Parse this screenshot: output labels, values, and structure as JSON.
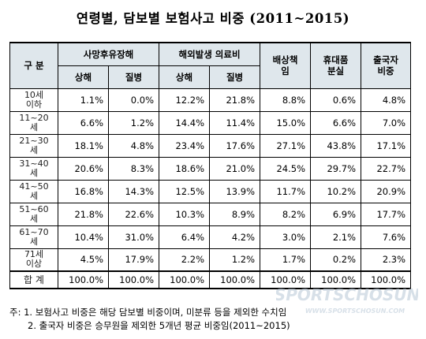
{
  "title": "연령별, 담보별 보험사고 비중 (2011~2015)",
  "table": {
    "header": {
      "gubun": "구 분",
      "group1": "사망후유장해",
      "group2": "해외발생 의료비",
      "col_liability": "배상책임",
      "col_portable": "휴대품분실",
      "col_departure": "출국자비중",
      "sub_injury": "상해",
      "sub_disease": "질병"
    },
    "rows": [
      {
        "label": "10세이하",
        "values": [
          "1.1%",
          "0.0%",
          "12.2%",
          "21.8%",
          "8.8%",
          "0.6%",
          "4.8%"
        ]
      },
      {
        "label": "11~20세",
        "values": [
          "6.6%",
          "1.2%",
          "14.4%",
          "11.4%",
          "15.0%",
          "6.6%",
          "7.0%"
        ]
      },
      {
        "label": "21~30세",
        "values": [
          "18.1%",
          "4.8%",
          "23.4%",
          "17.6%",
          "27.1%",
          "43.8%",
          "17.1%"
        ]
      },
      {
        "label": "31~40세",
        "values": [
          "20.6%",
          "8.3%",
          "18.6%",
          "21.0%",
          "24.5%",
          "29.7%",
          "22.7%"
        ]
      },
      {
        "label": "41~50세",
        "values": [
          "16.8%",
          "14.3%",
          "12.5%",
          "13.9%",
          "11.7%",
          "10.2%",
          "20.9%"
        ]
      },
      {
        "label": "51~60세",
        "values": [
          "21.8%",
          "22.6%",
          "10.3%",
          "8.9%",
          "8.2%",
          "6.9%",
          "17.7%"
        ]
      },
      {
        "label": "61~70세",
        "values": [
          "10.4%",
          "31.0%",
          "6.4%",
          "4.2%",
          "3.0%",
          "2.1%",
          "7.6%"
        ]
      },
      {
        "label": "71세이상",
        "values": [
          "4.5%",
          "17.9%",
          "2.2%",
          "1.2%",
          "1.7%",
          "0.2%",
          "2.3%"
        ]
      }
    ],
    "total": {
      "label": "합 계",
      "values": [
        "100.0%",
        "100.0%",
        "100.0%",
        "100.0%",
        "100.0%",
        "100.0%",
        "100.0%"
      ]
    }
  },
  "notes": {
    "note1": "주: 1. 보험사고 비중은 해당 담보별 비중이며, 미분류 등을 제외한 수치임",
    "note2": "2. 출국자 비중은 승무원을 제외한 5개년 평균 비중임(2011~2015)"
  },
  "watermark": {
    "text": "SPORTSCHOSUN",
    "url": "WWW.SPORTSCHOSUN.COM",
    "color": "#b8c7d6"
  }
}
